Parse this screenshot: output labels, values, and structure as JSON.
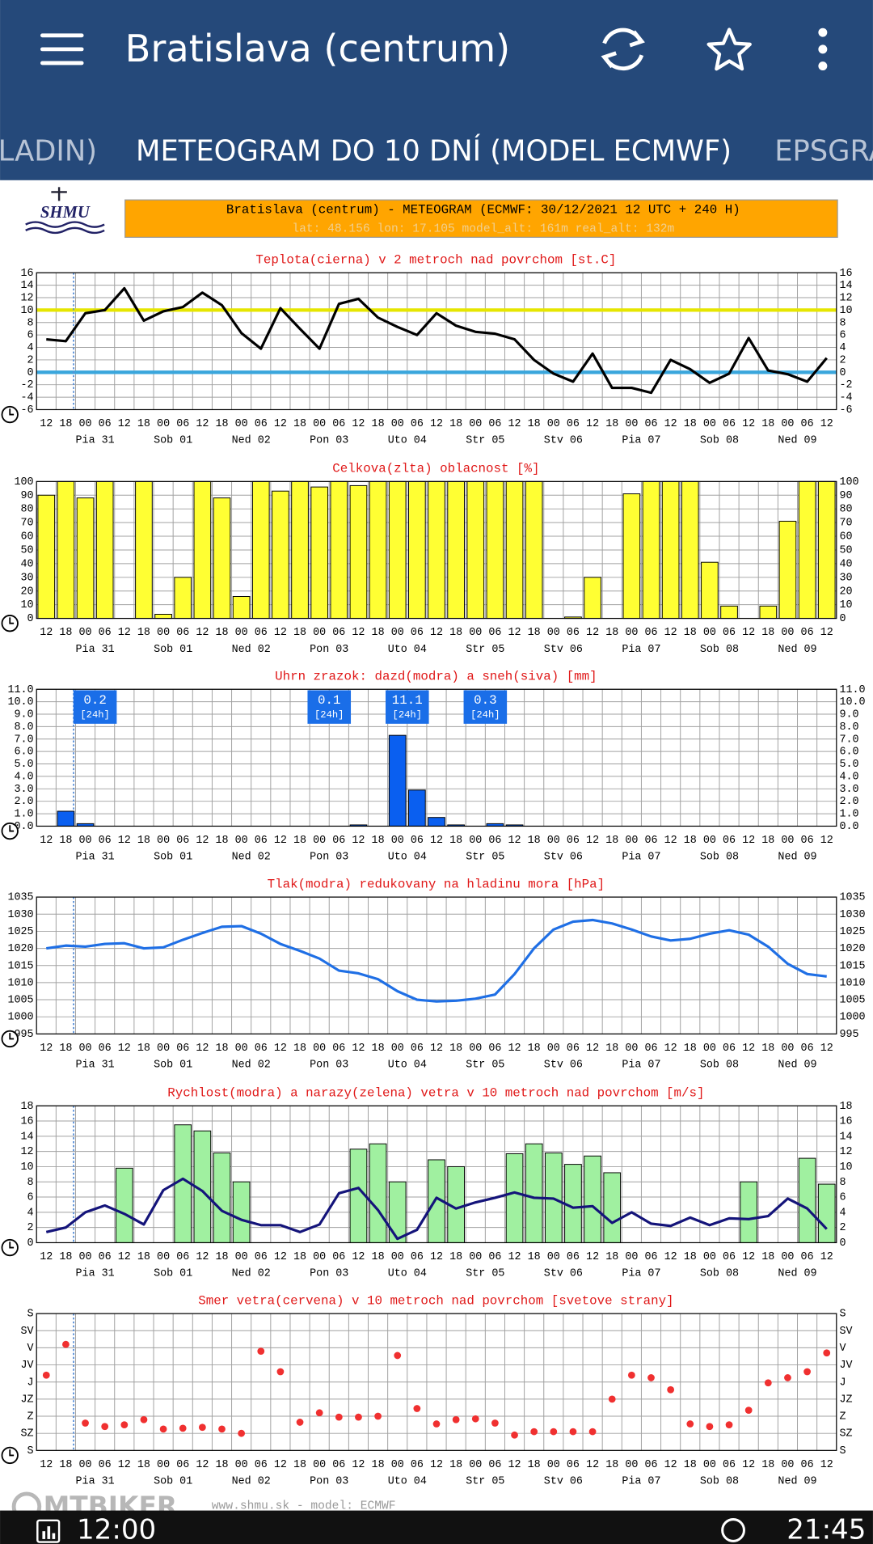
{
  "app_bar": {
    "title": "Bratislava (centrum)"
  },
  "tabs": [
    "LADIN)",
    "METEOGRAM DO 10 DNÍ (MODEL ECMWF)",
    "EPSGRA"
  ],
  "header": {
    "logo": "SHMU",
    "title": "Bratislava (centrum) - METEOGRAM (ECMWF: 30/12/2021 12 UTC + 240 H)",
    "subtitle": "lat: 48.156  lon: 17.105  model_alt: 161m  real_alt: 132m"
  },
  "footer": "www.shmu.sk - model: ECMWF",
  "watermark": "MTBIKER",
  "status_bar": {
    "left": "12:00",
    "right": "21:45"
  },
  "chart_data": [
    {
      "type": "line",
      "title": "Teplota(cierna) v 2 metroch nad povrchom [st.C]",
      "categories": [
        "12",
        "18",
        "00",
        "06",
        "12",
        "18",
        "00",
        "06",
        "12",
        "18",
        "00",
        "06",
        "12",
        "18",
        "00",
        "06",
        "12",
        "18",
        "00",
        "06",
        "12",
        "18",
        "00",
        "06",
        "12",
        "18",
        "00",
        "06",
        "12",
        "18",
        "00",
        "06",
        "12",
        "18",
        "00",
        "06",
        "12",
        "18",
        "00",
        "06",
        "12"
      ],
      "day_labels": [
        "Pia 31",
        "Sob 01",
        "Ned 02",
        "Pon 03",
        "Uto 04",
        "Str 05",
        "Stv 06",
        "Pia 07",
        "Sob 08",
        "Ned 09"
      ],
      "series": [
        {
          "color": "#000000",
          "values": [
            5.3,
            5,
            9.5,
            10,
            13.5,
            8.3,
            9.8,
            10.5,
            12.8,
            10.8,
            6.3,
            3.8,
            10.3,
            7,
            3.8,
            11,
            11.8,
            8.8,
            7.3,
            6,
            9.5,
            7.5,
            6.5,
            6.2,
            5.3,
            2,
            -0.2,
            -1.5,
            3,
            -2.5,
            -2.5,
            -3.3,
            2,
            0.5,
            -1.7,
            -0.2,
            5.5,
            0.3,
            -0.3,
            -1.5,
            2.3
          ]
        }
      ],
      "reference_lines": [
        {
          "value": 10,
          "color": "#e6e600"
        },
        {
          "value": 0,
          "color": "#3aa6dc"
        }
      ],
      "ylim": [
        -6,
        16
      ],
      "yticks": [
        -6,
        -4,
        -2,
        0,
        2,
        4,
        6,
        8,
        10,
        12,
        14,
        16
      ],
      "grid": true
    },
    {
      "type": "bar",
      "title": "Celkova(zlta) oblacnost [%]",
      "categories": [
        "12",
        "18",
        "00",
        "06",
        "12",
        "18",
        "00",
        "06",
        "12",
        "18",
        "00",
        "06",
        "12",
        "18",
        "00",
        "06",
        "12",
        "18",
        "00",
        "06",
        "12",
        "18",
        "00",
        "06",
        "12",
        "18",
        "00",
        "06",
        "12",
        "18",
        "00",
        "06",
        "12",
        "18",
        "00",
        "06",
        "12",
        "18",
        "00",
        "06",
        "12"
      ],
      "day_labels": [
        "Pia 31",
        "Sob 01",
        "Ned 02",
        "Pon 03",
        "Uto 04",
        "Str 05",
        "Stv 06",
        "Pia 07",
        "Sob 08",
        "Ned 09"
      ],
      "series": [
        {
          "color": "#ffff33",
          "values": [
            90,
            100,
            88,
            100,
            0,
            100,
            3,
            30,
            100,
            88,
            16,
            100,
            93,
            100,
            96,
            100,
            97,
            100,
            100,
            100,
            100,
            100,
            100,
            100,
            100,
            100,
            0,
            1,
            30,
            0,
            91,
            100,
            100,
            100,
            41,
            9,
            0,
            9,
            71,
            100,
            100
          ]
        }
      ],
      "ylim": [
        0,
        100
      ],
      "yticks": [
        0,
        10,
        20,
        30,
        40,
        50,
        60,
        70,
        80,
        90,
        100
      ],
      "grid": true
    },
    {
      "type": "bar",
      "title": "Uhrn zrazok: dazd(modra) a sneh(siva) [mm]",
      "categories": [
        "12",
        "18",
        "00",
        "06",
        "12",
        "18",
        "00",
        "06",
        "12",
        "18",
        "00",
        "06",
        "12",
        "18",
        "00",
        "06",
        "12",
        "18",
        "00",
        "06",
        "12",
        "18",
        "00",
        "06",
        "12",
        "18",
        "00",
        "06",
        "12",
        "18",
        "00",
        "06",
        "12",
        "18",
        "00",
        "06",
        "12",
        "18",
        "00",
        "06",
        "12"
      ],
      "day_labels": [
        "Pia 31",
        "Sob 01",
        "Ned 02",
        "Pon 03",
        "Uto 04",
        "Str 05",
        "Stv 06",
        "Pia 07",
        "Sob 08",
        "Ned 09"
      ],
      "series": [
        {
          "color": "#0a5ff0",
          "values": [
            0,
            1.2,
            0.2,
            0,
            0,
            0,
            0,
            0,
            0,
            0,
            0,
            0,
            0,
            0,
            0,
            0,
            0.1,
            0,
            7.3,
            2.9,
            0.7,
            0.1,
            0,
            0.2,
            0.1,
            0,
            0,
            0,
            0,
            0,
            0,
            0,
            0,
            0,
            0,
            0,
            0,
            0,
            0,
            0,
            0
          ]
        }
      ],
      "daily_totals": [
        0.2,
        null,
        null,
        0.1,
        11.1,
        0.3,
        null,
        null,
        null,
        null
      ],
      "daily_total_unit": "[24h]",
      "ylim": [
        0,
        11
      ],
      "yticks": [
        {
          "value": 0,
          "label": "0.0"
        },
        {
          "value": 1,
          "label": "1.0"
        },
        {
          "value": 2,
          "label": "2.0"
        },
        {
          "value": 3,
          "label": "3.0"
        },
        {
          "value": 4,
          "label": "4.0"
        },
        {
          "value": 5,
          "label": "5.0"
        },
        {
          "value": 6,
          "label": "6.0"
        },
        {
          "value": 7,
          "label": "7.0"
        },
        {
          "value": 8,
          "label": "8.0"
        },
        {
          "value": 9,
          "label": "9.0"
        },
        {
          "value": 10,
          "label": "10.0"
        },
        {
          "value": 11,
          "label": "11.0"
        }
      ],
      "grid": true
    },
    {
      "type": "line",
      "title": "Tlak(modra) redukovany na hladinu mora [hPa]",
      "categories": [
        "12",
        "18",
        "00",
        "06",
        "12",
        "18",
        "00",
        "06",
        "12",
        "18",
        "00",
        "06",
        "12",
        "18",
        "00",
        "06",
        "12",
        "18",
        "00",
        "06",
        "12",
        "18",
        "00",
        "06",
        "12",
        "18",
        "00",
        "06",
        "12",
        "18",
        "00",
        "06",
        "12",
        "18",
        "00",
        "06",
        "12",
        "18",
        "00",
        "06",
        "12"
      ],
      "day_labels": [
        "Pia 31",
        "Sob 01",
        "Ned 02",
        "Pon 03",
        "Uto 04",
        "Str 05",
        "Stv 06",
        "Pia 07",
        "Sob 08",
        "Ned 09"
      ],
      "series": [
        {
          "color": "#1f6fe5",
          "values": [
            1020,
            1020.8,
            1020.5,
            1021.3,
            1021.5,
            1020,
            1020.3,
            1022.5,
            1024.5,
            1026.3,
            1026.5,
            1024.3,
            1021.3,
            1019.3,
            1017,
            1013.5,
            1012.7,
            1011,
            1007.5,
            1005,
            1004.5,
            1004.7,
            1005.3,
            1006.5,
            1012.5,
            1020,
            1025.5,
            1027.8,
            1028.3,
            1027.3,
            1025.5,
            1023.5,
            1022.3,
            1022.8,
            1024.3,
            1025.3,
            1024,
            1020.5,
            1015.5,
            1012.5,
            1011.8
          ]
        }
      ],
      "ylim": [
        995,
        1035
      ],
      "yticks": [
        995,
        1000,
        1005,
        1010,
        1015,
        1020,
        1025,
        1030,
        1035
      ],
      "grid": true
    },
    {
      "type": "bar",
      "title": "Rychlost(modra) a narazy(zelena) vetra v 10 metroch nad povrchom [m/s]",
      "categories": [
        "12",
        "18",
        "00",
        "06",
        "12",
        "18",
        "00",
        "06",
        "12",
        "18",
        "00",
        "06",
        "12",
        "18",
        "00",
        "06",
        "12",
        "18",
        "00",
        "06",
        "12",
        "18",
        "00",
        "06",
        "12",
        "18",
        "00",
        "06",
        "12",
        "18",
        "00",
        "06",
        "12",
        "18",
        "00",
        "06",
        "12",
        "18",
        "00",
        "06",
        "12"
      ],
      "day_labels": [
        "Pia 31",
        "Sob 01",
        "Ned 02",
        "Pon 03",
        "Uto 04",
        "Str 05",
        "Stv 06",
        "Pia 07",
        "Sob 08",
        "Ned 09"
      ],
      "series": [
        {
          "type": "bar",
          "color": "#a0f0a0",
          "values": [
            null,
            null,
            null,
            null,
            9.8,
            null,
            null,
            15.5,
            14.7,
            11.8,
            8,
            null,
            null,
            null,
            null,
            null,
            12.3,
            13,
            8,
            null,
            10.9,
            10,
            null,
            null,
            11.7,
            13,
            11.8,
            10.3,
            11.4,
            9.2,
            null,
            null,
            null,
            null,
            null,
            null,
            8,
            null,
            null,
            11.1,
            7.7
          ]
        },
        {
          "type": "line",
          "color": "#14147a",
          "values": [
            1.4,
            2,
            4,
            4.9,
            3.8,
            2.4,
            6.9,
            8.4,
            6.8,
            4.2,
            3,
            2.3,
            2.3,
            1.4,
            2.4,
            6.5,
            7.2,
            4.3,
            0.5,
            1.7,
            5.9,
            4.5,
            5.3,
            5.9,
            6.6,
            5.9,
            5.8,
            4.6,
            4.8,
            2.6,
            4,
            2.5,
            2.2,
            3.3,
            2.3,
            3.2,
            3.1,
            3.5,
            5.8,
            4.5,
            1.8
          ]
        }
      ],
      "ylim": [
        0,
        18
      ],
      "yticks": [
        0,
        2,
        4,
        6,
        8,
        10,
        12,
        14,
        16,
        18
      ],
      "grid": true
    },
    {
      "type": "scatter",
      "title": "Smer vetra(cervena) v 10 metroch nad povrchom [svetove strany]",
      "categories": [
        "12",
        "18",
        "00",
        "06",
        "12",
        "18",
        "00",
        "06",
        "12",
        "18",
        "00",
        "06",
        "12",
        "18",
        "00",
        "06",
        "12",
        "18",
        "00",
        "06",
        "12",
        "18",
        "00",
        "06",
        "12",
        "18",
        "00",
        "06",
        "12",
        "18",
        "00",
        "06",
        "12",
        "18",
        "00",
        "06",
        "12",
        "18",
        "00",
        "06",
        "12"
      ],
      "day_labels": [
        "Pia 31",
        "Sob 01",
        "Ned 02",
        "Pon 03",
        "Uto 04",
        "Str 05",
        "Stv 06",
        "Pia 07",
        "Sob 08",
        "Ned 09"
      ],
      "series": [
        {
          "color": "#f03030",
          "values": [
            4.4,
            6.2,
            1.6,
            1.4,
            1.5,
            1.8,
            1.25,
            1.3,
            1.35,
            1.25,
            1,
            5.8,
            4.6,
            1.65,
            2.2,
            1.95,
            1.95,
            2,
            5.55,
            2.45,
            1.55,
            1.8,
            1.85,
            1.6,
            0.9,
            1.1,
            1.1,
            1.1,
            1.1,
            3,
            4.4,
            4.25,
            3.55,
            1.55,
            1.4,
            1.5,
            2.35,
            3.95,
            4.25,
            4.6,
            5.7
          ]
        }
      ],
      "ylim": [
        0,
        8
      ],
      "yticks": [
        {
          "value": 0,
          "label": "S"
        },
        {
          "value": 1,
          "label": "SZ"
        },
        {
          "value": 2,
          "label": "Z"
        },
        {
          "value": 3,
          "label": "JZ"
        },
        {
          "value": 4,
          "label": "J"
        },
        {
          "value": 5,
          "label": "JV"
        },
        {
          "value": 6,
          "label": "V"
        },
        {
          "value": 7,
          "label": "SV"
        },
        {
          "value": 8,
          "label": "S"
        }
      ],
      "grid": true
    }
  ]
}
